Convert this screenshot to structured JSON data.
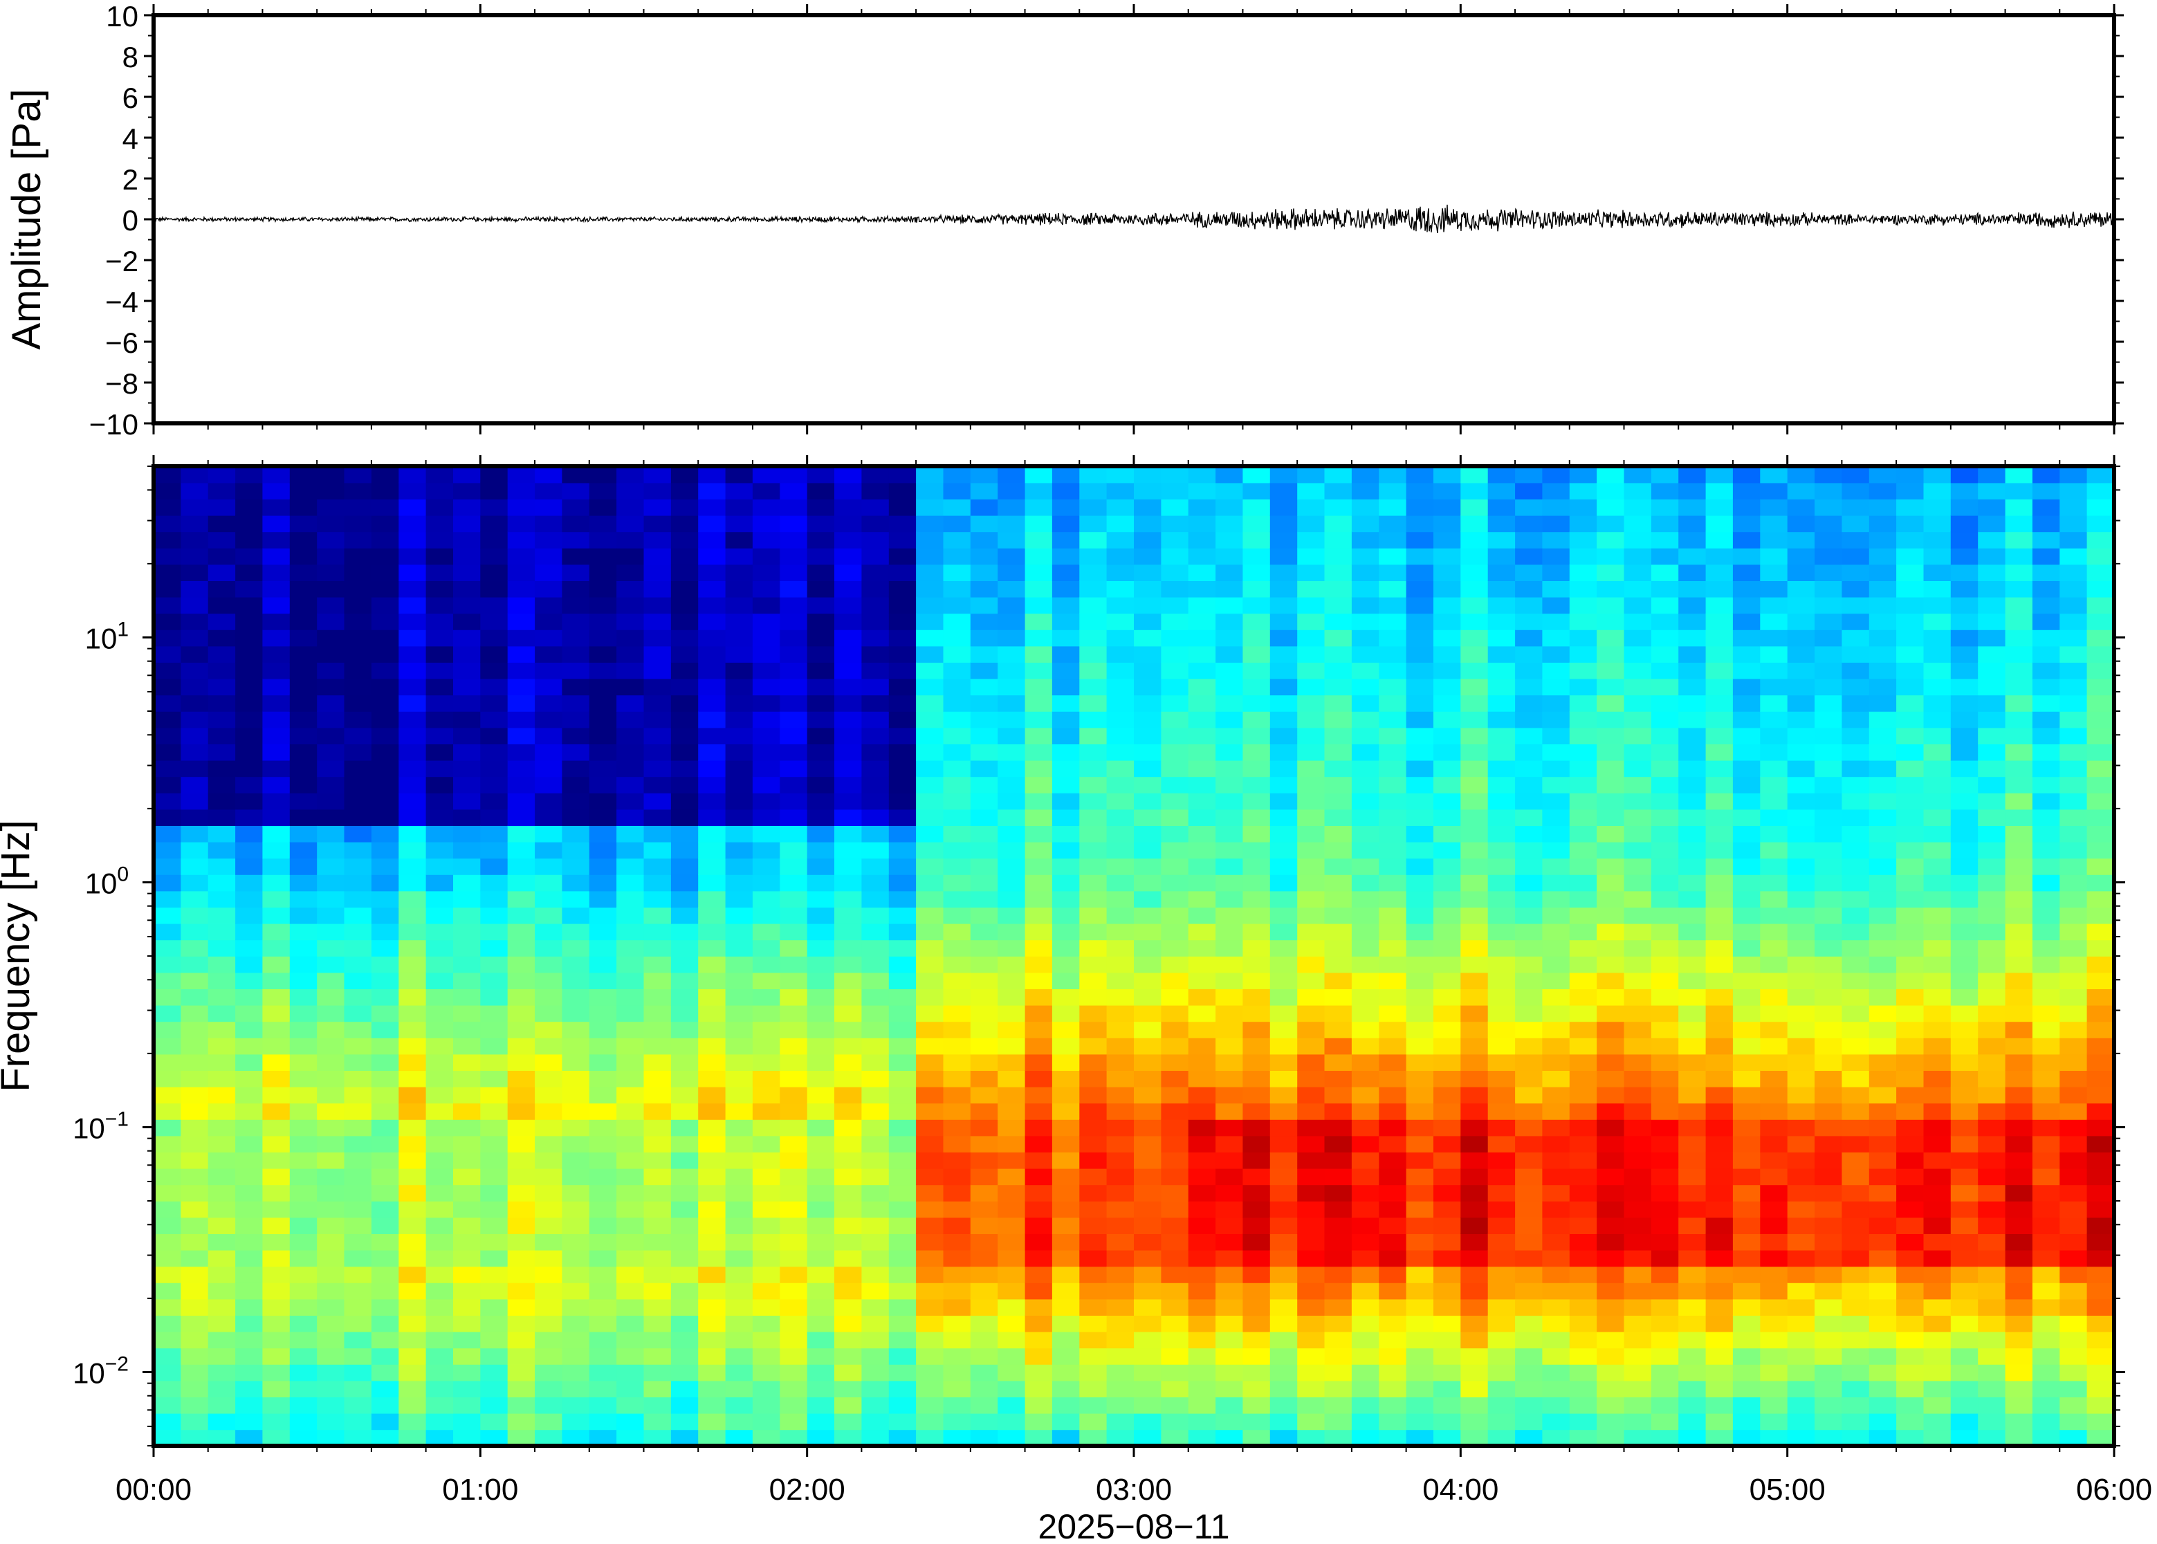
{
  "chart_data": [
    {
      "type": "line",
      "ylabel": "Amplitude [Pa]",
      "ylim": [
        -10,
        10
      ],
      "yticks": [
        -10,
        -8,
        -6,
        -4,
        -2,
        0,
        2,
        4,
        6,
        8,
        10
      ],
      "ytick_labels": [
        "−10",
        "−8",
        "−6",
        "−4",
        "−2",
        "0",
        "2",
        "4",
        "6",
        "8",
        "10"
      ],
      "xlim_hours": [
        0,
        6
      ],
      "series": [
        {
          "type": "waveform_envelope",
          "x_hours": [
            0,
            0.5,
            1.0,
            1.5,
            2.0,
            2.3,
            2.5,
            2.75,
            3.0,
            3.2,
            3.35,
            3.5,
            3.65,
            3.8,
            3.9,
            4.0,
            4.2,
            4.4,
            4.6,
            4.8,
            5.0,
            5.2,
            5.4,
            5.6,
            5.8,
            6.0
          ],
          "amplitude_pa": [
            0.12,
            0.12,
            0.13,
            0.13,
            0.15,
            0.18,
            0.25,
            0.35,
            0.35,
            0.45,
            0.55,
            0.65,
            0.6,
            0.65,
            0.9,
            0.7,
            0.6,
            0.5,
            0.5,
            0.45,
            0.4,
            0.3,
            0.3,
            0.35,
            0.45,
            0.5
          ]
        }
      ]
    },
    {
      "type": "heatmap",
      "ylabel": "Frequency [Hz]",
      "xlabel": "2025−08−11",
      "yscale": "log",
      "ylim": [
        0.005,
        50
      ],
      "yticks": [
        {
          "value": 0.01,
          "base": "10",
          "exp": "−2"
        },
        {
          "value": 0.1,
          "base": "10",
          "exp": "−1"
        },
        {
          "value": 1,
          "base": "10",
          "exp": "0"
        },
        {
          "value": 10,
          "base": "10",
          "exp": "1"
        }
      ],
      "xticks": [
        {
          "hours": 0,
          "label": "00:00"
        },
        {
          "hours": 1,
          "label": "01:00"
        },
        {
          "hours": 2,
          "label": "02:00"
        },
        {
          "hours": 3,
          "label": "03:00"
        },
        {
          "hours": 4,
          "label": "04:00"
        },
        {
          "hours": 5,
          "label": "05:00"
        },
        {
          "hours": 6,
          "label": "06:00"
        }
      ],
      "colormap": "jet",
      "time_columns": 72,
      "frequency_rows": 60,
      "segments": [
        {
          "x_range_hours": [
            0,
            2.3
          ],
          "description_level": "low",
          "floor_hz": 1.5
        },
        {
          "x_range_hours": [
            2.3,
            6.0
          ],
          "description_level": "elevated",
          "peak_band_hz": [
            0.03,
            0.15
          ]
        }
      ],
      "colors": {
        "low": "#00007f",
        "mid": "#7fff7f",
        "high": "#ff2000"
      }
    }
  ],
  "axes": {
    "amplitude_ylabel": "Amplitude [Pa]",
    "frequency_ylabel": "Frequency [Hz]",
    "date_label": "2025−08−11"
  }
}
